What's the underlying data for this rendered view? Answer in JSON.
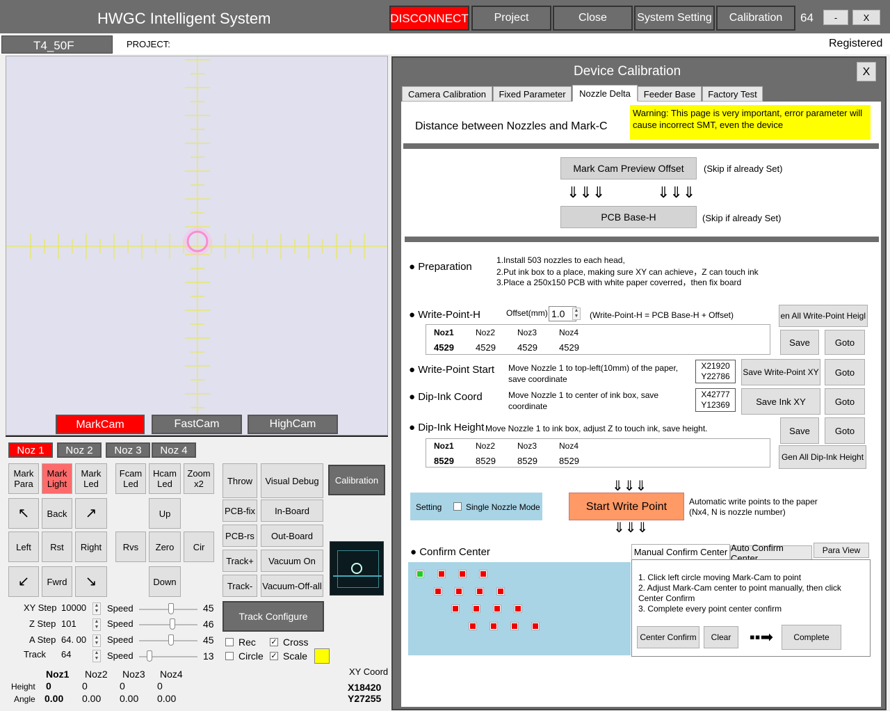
{
  "app": {
    "title": "HWGC Intelligent System",
    "disconnect": "DISCONNECT",
    "project": "Project",
    "close": "Close",
    "system_setting": "System Setting",
    "calibration": "Calibration",
    "number": "64",
    "minimize": "-",
    "close_x": "X"
  },
  "info": {
    "machine": "T4_50F",
    "project_label": "PROJECT:",
    "registered": "Registered"
  },
  "cams": {
    "mark": "MarkCam",
    "fast": "FastCam",
    "high": "HighCam"
  },
  "nozzles": [
    "Noz 1",
    "Noz 2",
    "Noz 3",
    "Noz 4"
  ],
  "controls": {
    "mark_para": "Mark\nPara",
    "mark_light": "Mark\nLight",
    "mark_led": "Mark\nLed",
    "fcam_led": "Fcam\nLed",
    "hcam_led": "Hcam\nLed",
    "zoom": "Zoom\nx2",
    "throw": "Throw",
    "visual_debug": "Visual Debug",
    "calibration": "Calibration",
    "back": "Back",
    "up": "Up",
    "left": "Left",
    "rst": "Rst",
    "right": "Right",
    "rvs": "Rvs",
    "zero": "Zero",
    "cir": "Cir",
    "fwrd": "Fwrd",
    "down": "Down",
    "pcb_fix": "PCB-fix",
    "in_board": "In-Board",
    "pcb_rs": "PCB-rs",
    "out_board": "Out-Board",
    "track_plus": "Track+",
    "vacuum_on": "Vacuum On",
    "track_minus": "Track-",
    "vacuum_off": "Vacuum-Off-all",
    "track_configure": "Track Configure"
  },
  "steps": {
    "xy_label": "XY Step",
    "xy": "10000",
    "z_label": "Z Step",
    "z": "101",
    "a_label": "A Step",
    "a": "64. 00",
    "track_label": "Track",
    "track": "64",
    "speed": "Speed",
    "speeds": [
      "45",
      "46",
      "45",
      "13"
    ],
    "speed_levels": [
      0.55,
      0.58,
      0.55,
      0.15
    ]
  },
  "options": {
    "rec": "Rec",
    "cross": "Cross",
    "circle": "Circle",
    "scale": "Scale"
  },
  "heights": {
    "cols": [
      "Noz1",
      "Noz2",
      "Noz3",
      "Noz4"
    ],
    "height_label": "Height",
    "angle_label": "Angle",
    "height": [
      "0",
      "0",
      "0",
      "0"
    ],
    "angle": [
      "0.00",
      "0.00",
      "0.00",
      "0.00"
    ],
    "xy_title": "XY Coord",
    "x": "X18420",
    "y": "Y27255"
  },
  "dialog": {
    "title": "Device Calibration",
    "close": "X",
    "tabs": [
      "Camera Calibration",
      "Fixed Parameter",
      "Nozzle Delta",
      "Feeder Base",
      "Factory Test"
    ],
    "heading": "Distance between Nozzles and Mark-C",
    "warning": "Warning: This page is very important, error parameter will cause incorrect SMT, even the device",
    "mark_offset": "Mark Cam Preview Offset",
    "skip1": "(Skip if already Set)",
    "arrows": "⇓⇓⇓",
    "pcb_base": "PCB Base-H",
    "skip2": "(Skip if already Set)",
    "prep_label": "● Preparation",
    "prep": [
      "1.Install 503 nozzles to each head,",
      "2.Put ink box to a place, making sure XY can achieve，Z can touch ink",
      "3.Place a 250x150 PCB with white paper coverred，then fix board"
    ],
    "wph_label": "● Write-Point-H",
    "offset_label": "Offset(mm)",
    "offset": "1.0",
    "wph_formula": "(Write-Point-H = PCB Base-H + Offset)",
    "gen_wph": "en All Write-Point Heigl",
    "noz_cols": [
      "Noz1",
      "Noz2",
      "Noz3",
      "Noz4"
    ],
    "wph_vals": [
      "4529",
      "4529",
      "4529",
      "4529"
    ],
    "save": "Save",
    "goto": "Goto",
    "wps_label": "● Write-Point Start",
    "wps_desc": "Move Nozzle 1 to top-left(10mm) of the paper, save coordinate",
    "wps_x": "X21920",
    "wps_y": "Y22786",
    "save_wps": "Save Write-Point XY",
    "dip_label": "● Dip-Ink Coord",
    "dip_desc": "Move Nozzle 1 to center of ink box, save coordinate",
    "dip_x": "X42777",
    "dip_y": "Y12369",
    "save_ink": "Save Ink XY",
    "diph_label": "● Dip-Ink Height",
    "diph_desc": "Move Nozzle 1 to ink box, adjust Z to touch ink, save height.",
    "diph_vals": [
      "8529",
      "8529",
      "8529",
      "8529"
    ],
    "gen_dip": "Gen All Dip-Ink Height",
    "setting": "Setting",
    "single_nozzle": "Single Nozzle Mode",
    "start_write": "Start Write Point",
    "auto_desc": "Automatic write points to the paper (Nx4, N is nozzle number)",
    "confirm_label": "● Confirm Center",
    "tabs2": [
      "Manual Confirm Center",
      "Auto Confirm Center",
      "Para View"
    ],
    "steps": [
      "1. Click left circle moving Mark-Cam to point",
      "2. Adjust Mark-Cam center to point manually, then click Center Confirm",
      "3. Complete every point center confirm"
    ],
    "center_confirm": "Center Confirm",
    "clear": "Clear",
    "complete": "Complete"
  },
  "colors": {
    "accent_red": "#ff0000",
    "dialog_bg": "#6d6d6d",
    "warning": "#ffff00",
    "start_btn": "#ff9966",
    "setting_bg": "#a9d4e6"
  }
}
